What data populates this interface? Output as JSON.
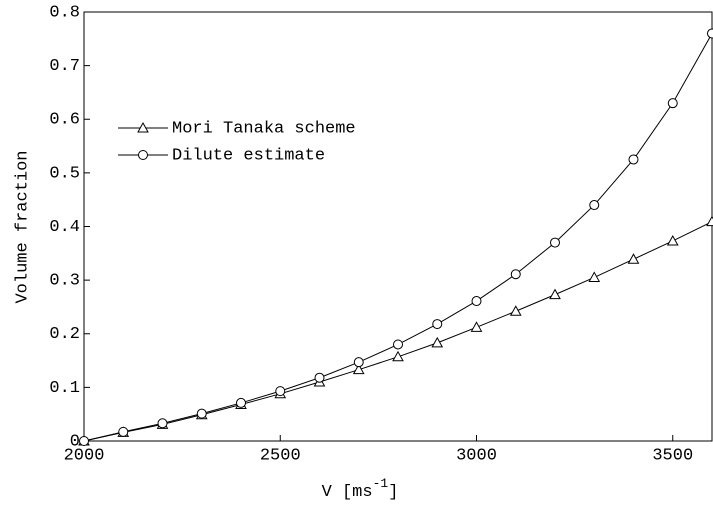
{
  "chart_data": {
    "type": "line",
    "xlabel": "V [ms",
    "xlabel_sup": "-1",
    "xlabel_end": "]",
    "ylabel": "Volume fraction",
    "x": [
      2000,
      2100,
      2200,
      2300,
      2400,
      2500,
      2600,
      2700,
      2800,
      2900,
      3000,
      3100,
      3200,
      3300,
      3400,
      3500,
      3600
    ],
    "series": [
      {
        "name": "Mori Tanaka scheme",
        "color": "#000000",
        "marker": "triangle",
        "values": [
          0,
          0.016,
          0.031,
          0.049,
          0.068,
          0.088,
          0.11,
          0.133,
          0.157,
          0.183,
          0.212,
          0.242,
          0.273,
          0.305,
          0.339,
          0.373,
          0.409
        ]
      },
      {
        "name": "Dilute estimate",
        "color": "#000000",
        "marker": "circle",
        "values": [
          0,
          0.017,
          0.033,
          0.051,
          0.071,
          0.093,
          0.118,
          0.147,
          0.18,
          0.218,
          0.261,
          0.311,
          0.37,
          0.44,
          0.525,
          0.63,
          0.76
        ]
      }
    ],
    "xlim": [
      2000,
      3600
    ],
    "xticks": [
      2000,
      2500,
      3000,
      3500
    ],
    "ylim": [
      0,
      0.8
    ],
    "yticks": [
      0,
      0.1,
      0.2,
      0.3,
      0.4,
      0.5,
      0.6,
      0.7,
      0.8
    ],
    "grid": false,
    "legend": "upper left"
  }
}
